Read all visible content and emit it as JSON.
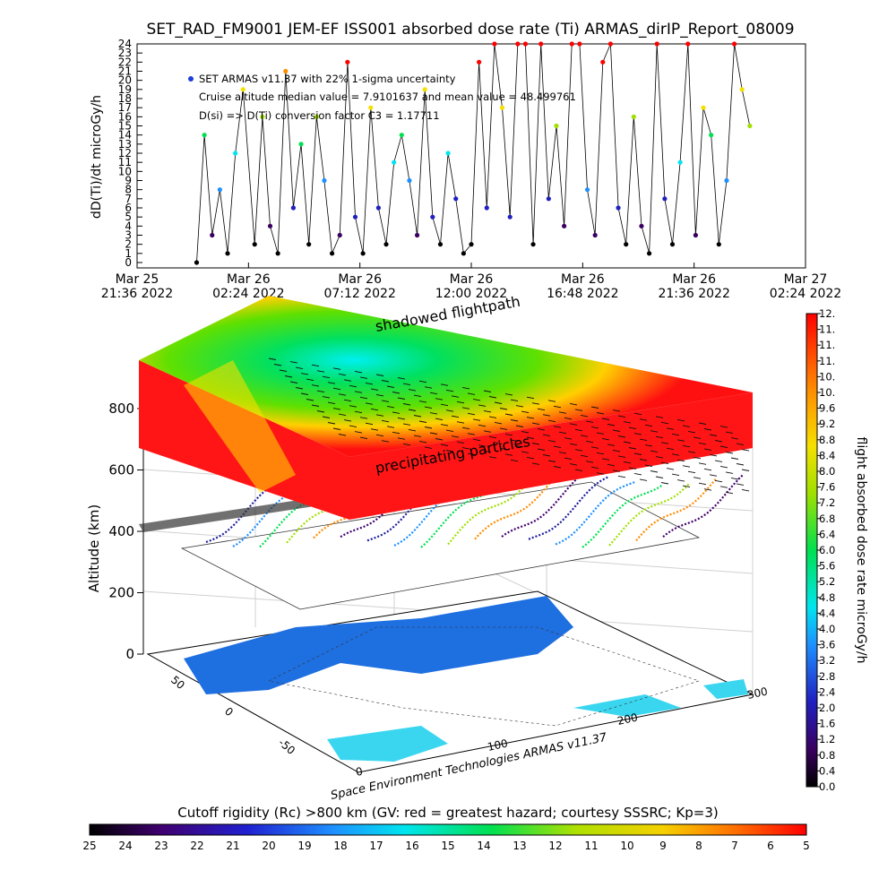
{
  "title": "SET_RAD_FM9001  JEM-EF ISS001 absorbed dose rate (Ti) ARMAS_dirIP_Report_08009",
  "top_chart": {
    "ylabel": "dD(Ti)/dt microGy/h",
    "legend_series": "SET ARMAS v11.37 with 22% 1-sigma uncertainty",
    "note_median": "Cruise altitude median value = 7.9101637 and mean value = 48.499761",
    "note_conversion": "D(si) => D(Ti) conversion factor C3 = 1.17711",
    "yticks": [
      "0",
      "1",
      "2",
      "3",
      "4",
      "5",
      "6",
      "7",
      "8",
      "9",
      "10",
      "11",
      "12",
      "13",
      "14",
      "15",
      "16",
      "17",
      "18",
      "19",
      "20",
      "21",
      "22",
      "23",
      "24"
    ],
    "xticks": [
      {
        "l1": "Mar 25",
        "l2": "21:36 2022"
      },
      {
        "l1": "Mar 26",
        "l2": "02:24 2022"
      },
      {
        "l1": "Mar 26",
        "l2": "07:12 2022"
      },
      {
        "l1": "Mar 26",
        "l2": "12:00 2022"
      },
      {
        "l1": "Mar 26",
        "l2": "16:48 2022"
      },
      {
        "l1": "Mar 26",
        "l2": "21:36 2022"
      },
      {
        "l1": "Mar 27",
        "l2": "02:24 2022"
      }
    ]
  },
  "chart_data": [
    {
      "type": "scatter",
      "title": "SET_RAD_FM9001  JEM-EF ISS001 absorbed dose rate (Ti) ARMAS_dirIP_Report_08009",
      "xlabel": "",
      "ylabel": "dD(Ti)/dt microGy/h",
      "xlim": [
        "2022-03-25T21:36",
        "2022-03-27T02:24"
      ],
      "ylim": [
        0,
        24
      ],
      "series": [
        {
          "name": "SET ARMAS v11.37 with 22% 1-sigma uncertainty",
          "x": [
            "2022-03-26T00:10",
            "2022-03-26T00:30",
            "2022-03-26T00:50",
            "2022-03-26T01:10",
            "2022-03-26T01:30",
            "2022-03-26T01:50",
            "2022-03-26T02:10",
            "2022-03-26T02:40",
            "2022-03-26T03:00",
            "2022-03-26T03:20",
            "2022-03-26T03:40",
            "2022-03-26T04:00",
            "2022-03-26T04:20",
            "2022-03-26T04:40",
            "2022-03-26T05:00",
            "2022-03-26T05:20",
            "2022-03-26T05:40",
            "2022-03-26T06:00",
            "2022-03-26T06:20",
            "2022-03-26T06:40",
            "2022-03-26T07:00",
            "2022-03-26T07:20",
            "2022-03-26T07:40",
            "2022-03-26T08:00",
            "2022-03-26T08:20",
            "2022-03-26T08:40",
            "2022-03-26T09:00",
            "2022-03-26T09:20",
            "2022-03-26T09:40",
            "2022-03-26T10:00",
            "2022-03-26T10:20",
            "2022-03-26T10:40",
            "2022-03-26T11:00",
            "2022-03-26T11:20",
            "2022-03-26T11:40",
            "2022-03-26T12:00",
            "2022-03-26T12:20",
            "2022-03-26T12:40",
            "2022-03-26T13:00",
            "2022-03-26T13:20",
            "2022-03-26T13:40",
            "2022-03-26T14:00",
            "2022-03-26T14:20",
            "2022-03-26T14:40",
            "2022-03-26T15:00",
            "2022-03-26T15:20",
            "2022-03-26T15:40",
            "2022-03-26T16:00",
            "2022-03-26T16:20",
            "2022-03-26T16:40",
            "2022-03-26T17:00",
            "2022-03-26T17:20",
            "2022-03-26T17:40",
            "2022-03-26T18:00",
            "2022-03-26T18:20",
            "2022-03-26T18:40",
            "2022-03-26T19:00",
            "2022-03-26T19:20",
            "2022-03-26T19:40",
            "2022-03-26T20:00",
            "2022-03-26T20:20",
            "2022-03-26T20:40",
            "2022-03-26T21:00",
            "2022-03-26T21:20",
            "2022-03-26T21:40",
            "2022-03-26T22:00",
            "2022-03-26T22:20",
            "2022-03-26T22:40",
            "2022-03-26T23:00",
            "2022-03-26T23:20",
            "2022-03-26T23:40",
            "2022-03-27T00:00"
          ],
          "y": [
            0,
            14,
            3,
            8,
            1,
            12,
            19,
            2,
            16,
            4,
            1,
            21,
            6,
            13,
            2,
            16,
            9,
            1,
            3,
            22,
            5,
            1,
            17,
            6,
            2,
            11,
            14,
            9,
            3,
            19,
            5,
            2,
            12,
            7,
            1,
            2,
            22,
            6,
            24,
            17,
            5,
            24,
            24,
            2,
            24,
            7,
            15,
            4,
            24,
            24,
            8,
            3,
            22,
            24,
            6,
            2,
            16,
            4,
            1,
            24,
            7,
            2,
            11,
            24,
            3,
            17,
            14,
            2,
            9,
            24,
            19,
            15
          ]
        }
      ]
    },
    {
      "type": "heatmap",
      "title": "",
      "xlabel": "",
      "ylabel": "Altitude (km)",
      "zlim": [
        0,
        800
      ],
      "zticks": [
        "0",
        "200",
        "400",
        "600",
        "800"
      ],
      "lon_ticks": [
        "0",
        "100",
        "200",
        "300"
      ],
      "lat_ticks": [
        "50",
        "0",
        "-50"
      ],
      "layer_labels": [
        "shadowed flightpath",
        "precipitating particles"
      ],
      "credit": "Space Environment Technologies ARMAS v11.37"
    }
  ],
  "colorbar_right": {
    "label": "flight absorbed dose rate microGy/h",
    "ticks": [
      "0.0",
      "0.4",
      "0.8",
      "1.2",
      "1.6",
      "2.0",
      "2.4",
      "2.8",
      "3.2",
      "3.6",
      "4.0",
      "4.4",
      "4.8",
      "5.2",
      "5.6",
      "6.0",
      "6.4",
      "6.8",
      "7.2",
      "7.6",
      "8.0",
      "8.4",
      "8.8",
      "9.2",
      "9.6",
      "10.",
      "10.",
      "11.",
      "11.",
      "11.",
      "12."
    ]
  },
  "colorbar_bottom": {
    "label": "Cutoff rigidity (Rc) >800 km (GV: red = greatest hazard; courtesy SSSRC; Kp=3)",
    "ticks": [
      "25",
      "24",
      "23",
      "22",
      "21",
      "20",
      "19",
      "18",
      "17",
      "16",
      "15",
      "14",
      "13",
      "12",
      "11",
      "10",
      "9",
      "8",
      "7",
      "6",
      "5"
    ]
  },
  "colors": {
    "land": "#1e6fe0",
    "ocean_shallow": "#3ad6f0",
    "hazard": "#ff1010",
    "series_point": "#1e1e9e"
  }
}
